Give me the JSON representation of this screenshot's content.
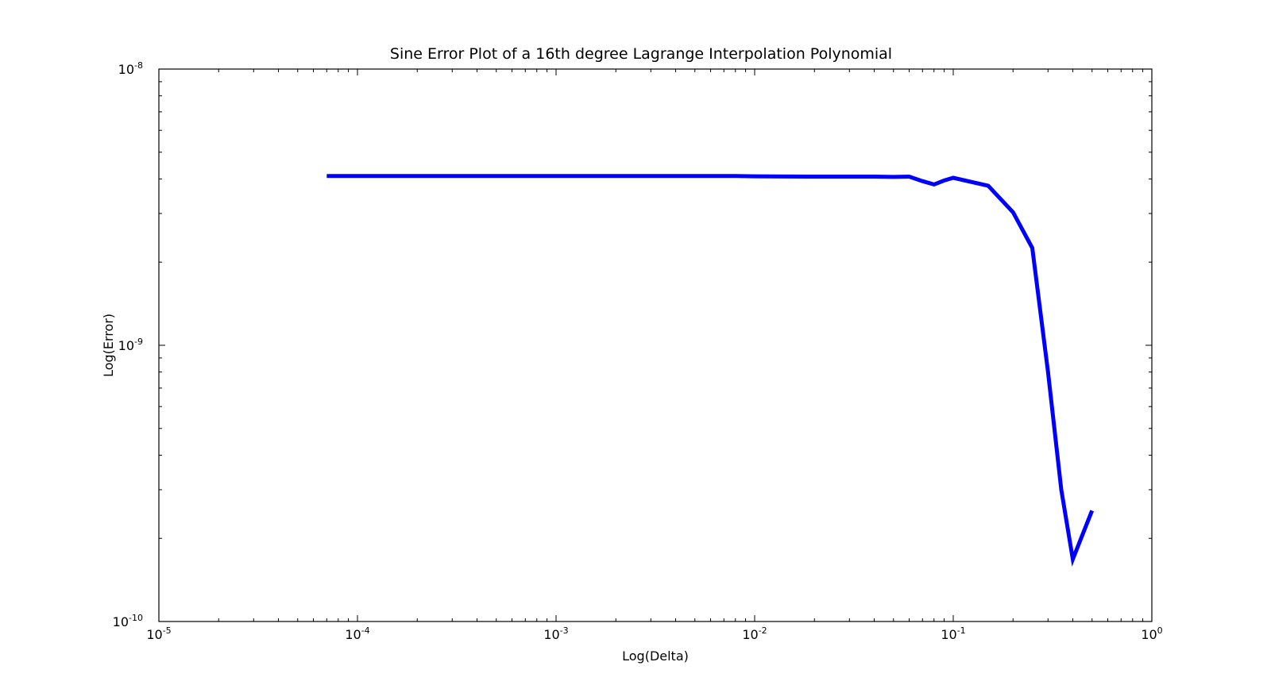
{
  "chart_data": {
    "type": "line",
    "title": "Sine Error Plot of a 16th degree Lagrange Interpolation Polynomial",
    "xlabel": "Log(Delta)",
    "ylabel": "Log(Error)",
    "xscale": "log",
    "yscale": "log",
    "xlim": [
      1e-05,
      1
    ],
    "ylim": [
      1e-10,
      1e-08
    ],
    "grid": false,
    "x_ticks": [
      {
        "base": "10",
        "exp": "-5",
        "value": 1e-05
      },
      {
        "base": "10",
        "exp": "-4",
        "value": 0.0001
      },
      {
        "base": "10",
        "exp": "-3",
        "value": 0.001
      },
      {
        "base": "10",
        "exp": "-2",
        "value": 0.01
      },
      {
        "base": "10",
        "exp": "-1",
        "value": 0.1
      },
      {
        "base": "10",
        "exp": "0",
        "value": 1
      }
    ],
    "y_ticks": [
      {
        "base": "10",
        "exp": "-10",
        "value": 1e-10
      },
      {
        "base": "10",
        "exp": "-9",
        "value": 1e-09
      },
      {
        "base": "10",
        "exp": "-8",
        "value": 1e-08
      }
    ],
    "series": [
      {
        "color": "#0000ff",
        "x": [
          7e-05,
          0.0001,
          0.001,
          0.004,
          0.008,
          0.01,
          0.02,
          0.04,
          0.05,
          0.06,
          0.07,
          0.08,
          0.09,
          0.1,
          0.15,
          0.2,
          0.25,
          0.3,
          0.35,
          0.4,
          0.5
        ],
        "y": [
          4.1e-09,
          4.1e-09,
          4.1e-09,
          4.1e-09,
          4.1e-09,
          4.09e-09,
          4.08e-09,
          4.08e-09,
          4.07e-09,
          4.08e-09,
          3.93e-09,
          3.82e-09,
          3.95e-09,
          4.04e-09,
          3.78e-09,
          3.03e-09,
          2.25e-09,
          8e-10,
          3e-10,
          1.68e-10,
          2.52e-10
        ]
      }
    ]
  }
}
